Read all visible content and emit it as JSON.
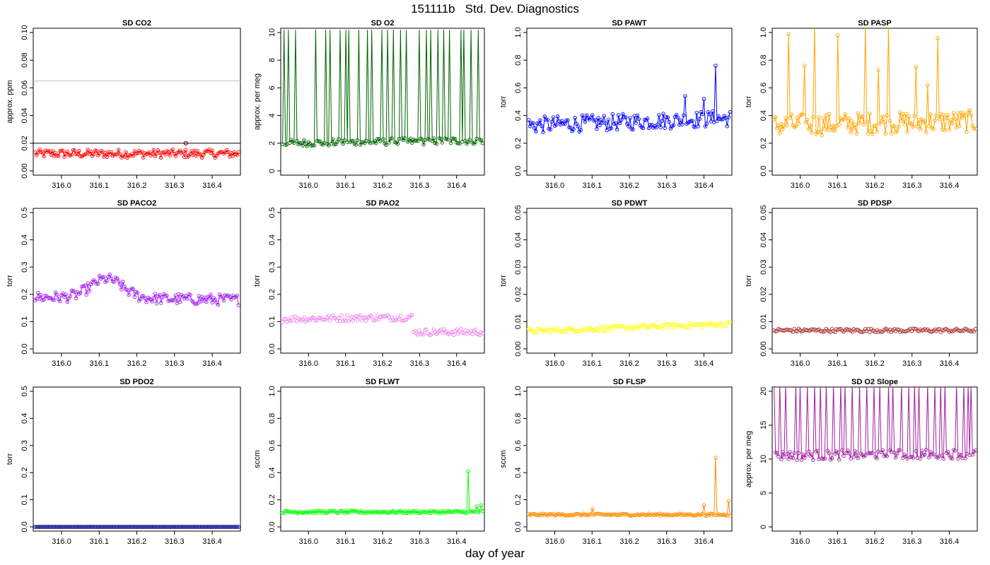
{
  "page": {
    "title": "151111b   Std. Dev. Diagnostics",
    "xlabel": "day of year"
  },
  "chart_data": [
    {
      "type": "line",
      "title": "SD CO2",
      "ylabel": "approx. ppm",
      "color": "#ff0000",
      "ylim": [
        0,
        0.1
      ],
      "yticks": [
        "0.00",
        "0.02",
        "0.04",
        "0.06",
        "0.08",
        "0.10"
      ],
      "xlim": [
        315.925,
        316.475
      ],
      "xticks": [
        "316.0",
        "316.1",
        "316.2",
        "316.3",
        "316.4"
      ],
      "hlines": [
        {
          "y": 0.065,
          "color": "#bebebe"
        },
        {
          "y": 0.02,
          "color": "#000000"
        }
      ],
      "highlight": {
        "x": 316.33,
        "y": 0.02,
        "color": "#8b0000"
      },
      "mode": "points_lines",
      "n": 140,
      "base": [
        0.0125,
        0.0125
      ],
      "noise": 0.003,
      "spikes": []
    },
    {
      "type": "line",
      "title": "SD O2",
      "ylabel": "approx. per meg",
      "color": "#006400",
      "ylim": [
        0,
        10
      ],
      "yticks": [
        "0",
        "2",
        "4",
        "6",
        "8",
        "10"
      ],
      "xlim": [
        315.925,
        316.475
      ],
      "xticks": [
        "316.0",
        "316.1",
        "316.2",
        "316.3",
        "316.4"
      ],
      "mode": "lines_low_points",
      "n": 140,
      "base": [
        2.0,
        2.2
      ],
      "noise": 0.25,
      "spikes": [
        {
          "x": 315.935,
          "y": 10.2
        },
        {
          "x": 315.945,
          "y": 10.2
        },
        {
          "x": 315.965,
          "y": 10.2
        },
        {
          "x": 316.02,
          "y": 10.2
        },
        {
          "x": 316.045,
          "y": 10.2
        },
        {
          "x": 316.06,
          "y": 10.2
        },
        {
          "x": 316.085,
          "y": 10.2
        },
        {
          "x": 316.1,
          "y": 10.2
        },
        {
          "x": 316.11,
          "y": 10.2
        },
        {
          "x": 316.135,
          "y": 10.2
        },
        {
          "x": 316.16,
          "y": 10.2
        },
        {
          "x": 316.17,
          "y": 10.2
        },
        {
          "x": 316.2,
          "y": 10.2
        },
        {
          "x": 316.215,
          "y": 10.2
        },
        {
          "x": 316.23,
          "y": 10.2
        },
        {
          "x": 316.25,
          "y": 10.2
        },
        {
          "x": 316.265,
          "y": 10.2
        },
        {
          "x": 316.3,
          "y": 10.2
        },
        {
          "x": 316.32,
          "y": 10.2
        },
        {
          "x": 316.33,
          "y": 10.2
        },
        {
          "x": 316.35,
          "y": 10.2
        },
        {
          "x": 316.365,
          "y": 10.2
        },
        {
          "x": 316.38,
          "y": 10.2
        },
        {
          "x": 316.41,
          "y": 10.2
        },
        {
          "x": 316.42,
          "y": 10.2
        },
        {
          "x": 316.44,
          "y": 10.2
        },
        {
          "x": 316.46,
          "y": 10.2
        }
      ]
    },
    {
      "type": "line",
      "title": "SD PAWT",
      "ylabel": "torr",
      "color": "#0000ff",
      "ylim": [
        0,
        1
      ],
      "yticks": [
        "0.0",
        "0.2",
        "0.4",
        "0.6",
        "0.8",
        "1.0"
      ],
      "xlim": [
        315.925,
        316.475
      ],
      "xticks": [
        "316.0",
        "316.1",
        "316.2",
        "316.3",
        "316.4"
      ],
      "mode": "points_lines",
      "n": 140,
      "base": [
        0.33,
        0.38
      ],
      "noise": 0.06,
      "spikes": [
        {
          "x": 316.43,
          "y": 0.76
        },
        {
          "x": 316.35,
          "y": 0.54
        },
        {
          "x": 316.4,
          "y": 0.52
        }
      ]
    },
    {
      "type": "line",
      "title": "SD PASP",
      "ylabel": "torr",
      "color": "#ffa500",
      "ylim": [
        0,
        1
      ],
      "yticks": [
        "0.0",
        "0.2",
        "0.4",
        "0.6",
        "0.8",
        "1.0"
      ],
      "xlim": [
        315.925,
        316.475
      ],
      "xticks": [
        "316.0",
        "316.1",
        "316.2",
        "316.3",
        "316.4"
      ],
      "mode": "points_lines",
      "n": 140,
      "base": [
        0.33,
        0.36
      ],
      "noise": 0.08,
      "spikes": [
        {
          "x": 315.97,
          "y": 0.99
        },
        {
          "x": 316.01,
          "y": 0.76
        },
        {
          "x": 316.04,
          "y": 1.05
        },
        {
          "x": 316.1,
          "y": 0.98
        },
        {
          "x": 316.175,
          "y": 1.05
        },
        {
          "x": 316.21,
          "y": 0.73
        },
        {
          "x": 316.235,
          "y": 1.05
        },
        {
          "x": 316.31,
          "y": 0.75
        },
        {
          "x": 316.37,
          "y": 0.96
        },
        {
          "x": 316.34,
          "y": 0.62
        }
      ]
    },
    {
      "type": "line",
      "title": "SD PACO2",
      "ylabel": "torr",
      "color": "#a020f0",
      "ylim": [
        0,
        0.5
      ],
      "yticks": [
        "0.0",
        "0.1",
        "0.2",
        "0.3",
        "0.4",
        "0.5"
      ],
      "xlim": [
        315.925,
        316.475
      ],
      "xticks": [
        "316.0",
        "316.1",
        "316.2",
        "316.3",
        "316.4"
      ],
      "mode": "points_lines",
      "n": 140,
      "base": [
        0.19,
        0.18
      ],
      "hump": {
        "center": 316.12,
        "width": 0.06,
        "height": 0.07
      },
      "noise": 0.02,
      "spikes": []
    },
    {
      "type": "line",
      "title": "SD PAO2",
      "ylabel": "torr",
      "color": "#ee82ee",
      "ylim": [
        0,
        0.5
      ],
      "yticks": [
        "0.0",
        "0.1",
        "0.2",
        "0.3",
        "0.4",
        "0.5"
      ],
      "xlim": [
        315.925,
        316.475
      ],
      "xticks": [
        "316.0",
        "316.1",
        "316.2",
        "316.3",
        "316.4"
      ],
      "mode": "points_only",
      "n": 140,
      "base": [
        0.11,
        0.12
      ],
      "step": {
        "x": 316.28,
        "after": 0.062
      },
      "noise": 0.012,
      "spikes": []
    },
    {
      "type": "line",
      "title": "SD PDWT",
      "ylabel": "torr",
      "color": "#ffff00",
      "ylim": [
        0,
        0.05
      ],
      "yticks": [
        "0.00",
        "0.01",
        "0.02",
        "0.03",
        "0.04",
        "0.05"
      ],
      "xlim": [
        315.925,
        316.475
      ],
      "xticks": [
        "316.0",
        "316.1",
        "316.2",
        "316.3",
        "316.4"
      ],
      "mode": "points_only",
      "n": 140,
      "base": [
        0.0065,
        0.0092
      ],
      "noise": 0.0009,
      "spikes": []
    },
    {
      "type": "line",
      "title": "SD PDSP",
      "ylabel": "torr",
      "color": "#a52a2a",
      "ylim": [
        0,
        0.05
      ],
      "yticks": [
        "0.00",
        "0.01",
        "0.02",
        "0.03",
        "0.04",
        "0.05"
      ],
      "xlim": [
        315.925,
        316.475
      ],
      "xticks": [
        "316.0",
        "316.1",
        "316.2",
        "316.3",
        "316.4"
      ],
      "mode": "points_only",
      "n": 140,
      "base": [
        0.0068,
        0.0068
      ],
      "noise": 0.0007,
      "spikes": []
    },
    {
      "type": "line",
      "title": "SD PDO2",
      "ylabel": "torr",
      "color": "#00008b",
      "ylim": [
        0,
        0.5
      ],
      "yticks": [
        "0.0",
        "0.1",
        "0.2",
        "0.3",
        "0.4",
        "0.5"
      ],
      "xlim": [
        315.925,
        316.475
      ],
      "xticks": [
        "316.0",
        "316.1",
        "316.2",
        "316.3",
        "316.4"
      ],
      "mode": "points_lines",
      "n": 140,
      "base": [
        0.0,
        0.0
      ],
      "noise": 0.0,
      "spikes": []
    },
    {
      "type": "line",
      "title": "SD FLWT",
      "ylabel": "sccm",
      "color": "#00ff00",
      "ylim": [
        0,
        1
      ],
      "yticks": [
        "0.0",
        "0.2",
        "0.4",
        "0.6",
        "0.8",
        "1.0"
      ],
      "xlim": [
        315.925,
        316.475
      ],
      "xticks": [
        "316.0",
        "316.1",
        "316.2",
        "316.3",
        "316.4"
      ],
      "mode": "points_lines",
      "n": 140,
      "base": [
        0.11,
        0.11
      ],
      "noise": 0.01,
      "spikes": [
        {
          "x": 316.43,
          "y": 0.41
        },
        {
          "x": 316.465,
          "y": 0.16
        },
        {
          "x": 316.455,
          "y": 0.15
        }
      ]
    },
    {
      "type": "line",
      "title": "SD FLSP",
      "ylabel": "sccm",
      "color": "#ff8c00",
      "ylim": [
        0,
        1
      ],
      "yticks": [
        "0.0",
        "0.2",
        "0.4",
        "0.6",
        "0.8",
        "1.0"
      ],
      "xlim": [
        315.925,
        316.475
      ],
      "xticks": [
        "316.0",
        "316.1",
        "316.2",
        "316.3",
        "316.4"
      ],
      "mode": "points_lines",
      "n": 140,
      "base": [
        0.09,
        0.09
      ],
      "noise": 0.008,
      "spikes": [
        {
          "x": 316.43,
          "y": 0.51
        },
        {
          "x": 316.4,
          "y": 0.16
        },
        {
          "x": 316.465,
          "y": 0.19
        },
        {
          "x": 316.1,
          "y": 0.13
        }
      ]
    },
    {
      "type": "line",
      "title": "SD O2 Slope",
      "ylabel": "approx. per meg",
      "color": "#a020a0",
      "ylim": [
        0,
        20
      ],
      "yticks": [
        "0",
        "5",
        "10",
        "15",
        "20"
      ],
      "xlim": [
        315.925,
        316.475
      ],
      "xticks": [
        "316.0",
        "316.1",
        "316.2",
        "316.3",
        "316.4"
      ],
      "mode": "lines_low_points",
      "n": 140,
      "base": [
        10.5,
        10.8
      ],
      "noise": 0.7,
      "spikes": [
        {
          "x": 315.93,
          "y": 21
        },
        {
          "x": 315.945,
          "y": 21
        },
        {
          "x": 315.96,
          "y": 21
        },
        {
          "x": 315.99,
          "y": 21
        },
        {
          "x": 316.0,
          "y": 21
        },
        {
          "x": 316.02,
          "y": 21
        },
        {
          "x": 316.04,
          "y": 21
        },
        {
          "x": 316.055,
          "y": 21
        },
        {
          "x": 316.07,
          "y": 21
        },
        {
          "x": 316.09,
          "y": 21
        },
        {
          "x": 316.11,
          "y": 21
        },
        {
          "x": 316.12,
          "y": 21
        },
        {
          "x": 316.14,
          "y": 21
        },
        {
          "x": 316.16,
          "y": 21
        },
        {
          "x": 316.18,
          "y": 21
        },
        {
          "x": 316.2,
          "y": 21
        },
        {
          "x": 316.215,
          "y": 21
        },
        {
          "x": 316.235,
          "y": 21
        },
        {
          "x": 316.25,
          "y": 21
        },
        {
          "x": 316.27,
          "y": 21
        },
        {
          "x": 316.29,
          "y": 21
        },
        {
          "x": 316.305,
          "y": 21
        },
        {
          "x": 316.32,
          "y": 21
        },
        {
          "x": 316.34,
          "y": 21
        },
        {
          "x": 316.36,
          "y": 21
        },
        {
          "x": 316.375,
          "y": 21
        },
        {
          "x": 316.39,
          "y": 21
        },
        {
          "x": 316.42,
          "y": 21
        },
        {
          "x": 316.44,
          "y": 21
        },
        {
          "x": 316.45,
          "y": 21
        },
        {
          "x": 316.46,
          "y": 21
        }
      ]
    }
  ]
}
